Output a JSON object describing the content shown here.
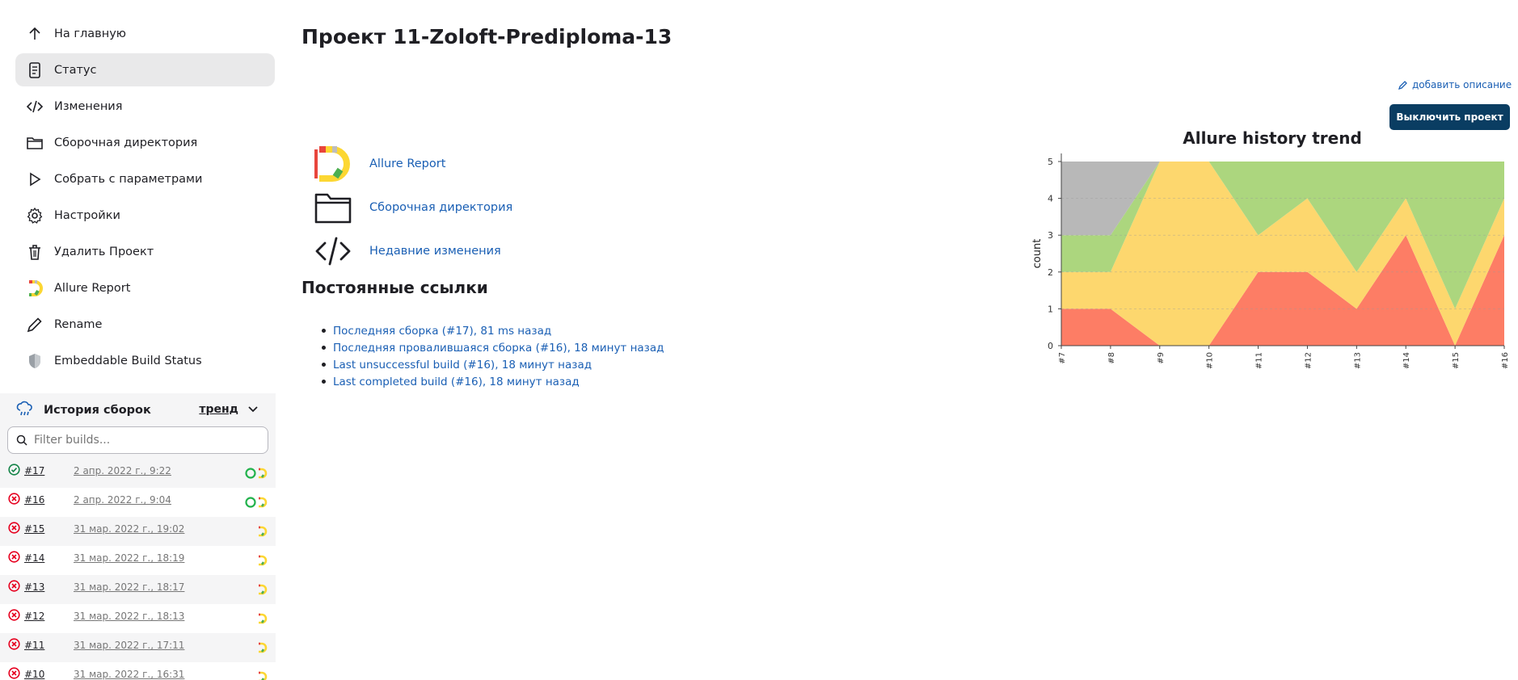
{
  "sidebar": {
    "items": [
      {
        "label": "На главную",
        "icon": "arrow-up-icon"
      },
      {
        "label": "Статус",
        "icon": "document-icon",
        "active": true
      },
      {
        "label": "Изменения",
        "icon": "code-icon"
      },
      {
        "label": "Сборочная директория",
        "icon": "folder-icon"
      },
      {
        "label": "Собрать с параметрами",
        "icon": "play-icon"
      },
      {
        "label": "Настройки",
        "icon": "gear-icon"
      },
      {
        "label": "Удалить Проект",
        "icon": "trash-icon"
      },
      {
        "label": "Allure Report",
        "icon": "allure-logo-icon"
      },
      {
        "label": "Rename",
        "icon": "pencil-icon"
      },
      {
        "label": "Embeddable Build Status",
        "icon": "shield-icon"
      }
    ]
  },
  "history": {
    "title": "История сборок",
    "trend_label": "тренд",
    "filter_placeholder": "Filter builds...",
    "builds": [
      {
        "number": "#17",
        "date": "2 апр. 2022 г., 9:22",
        "status": "success"
      },
      {
        "number": "#16",
        "date": "2 апр. 2022 г., 9:04",
        "status": "failed"
      },
      {
        "number": "#15",
        "date": "31 мар. 2022 г., 19:02",
        "status": "failed"
      },
      {
        "number": "#14",
        "date": "31 мар. 2022 г., 18:19",
        "status": "failed"
      },
      {
        "number": "#13",
        "date": "31 мар. 2022 г., 18:17",
        "status": "failed"
      },
      {
        "number": "#12",
        "date": "31 мар. 2022 г., 18:13",
        "status": "failed"
      },
      {
        "number": "#11",
        "date": "31 мар. 2022 г., 17:11",
        "status": "failed"
      },
      {
        "number": "#10",
        "date": "31 мар. 2022 г., 16:31",
        "status": "failed"
      }
    ]
  },
  "main": {
    "title": "Проект 11-Zoloft-Prediploma-13",
    "add_description": "добавить описание",
    "disable_button": "Выключить проект",
    "links": [
      {
        "label": "Allure Report",
        "icon": "allure-logo-icon"
      },
      {
        "label": "Сборочная директория",
        "icon": "folder-icon"
      },
      {
        "label": "Недавние изменения",
        "icon": "code-icon"
      }
    ],
    "permalinks_title": "Постоянные ссылки",
    "permalinks": [
      "Последняя сборка (#17), 81 ms назад",
      "Последняя провалившаяся сборка (#16), 18 минут назад",
      "Last unsuccessful build (#16), 18 минут назад",
      "Last completed build (#16), 18 минут назад"
    ]
  },
  "colors": {
    "failed": "#fd7d65",
    "broken": "#fdd76e",
    "passed": "#acd67e",
    "skipped": "#b8b8b8",
    "link": "#1a5fb4",
    "button": "#0a3d62"
  },
  "chart_data": {
    "type": "area",
    "title": "Allure history trend",
    "ylabel": "count",
    "xlabel": "",
    "categories": [
      "#7",
      "#8",
      "#9",
      "#10",
      "#11",
      "#12",
      "#13",
      "#14",
      "#15",
      "#16"
    ],
    "ylim": [
      0,
      5
    ],
    "yticks": [
      0,
      1,
      2,
      3,
      4,
      5
    ],
    "stacked": true,
    "grid": true,
    "series": [
      {
        "color": "#fd7d65",
        "values": [
          1,
          1,
          0,
          0,
          2,
          2,
          1,
          3,
          0,
          3
        ]
      },
      {
        "color": "#fdd76e",
        "values": [
          1,
          1,
          5,
          5,
          1,
          2,
          1,
          1,
          1,
          1
        ]
      },
      {
        "color": "#acd67e",
        "values": [
          1,
          1,
          0,
          0,
          2,
          1,
          3,
          1,
          4,
          1
        ]
      },
      {
        "color": "#b8b8b8",
        "values": [
          2,
          2,
          0,
          0,
          0,
          0,
          0,
          0,
          0,
          0
        ]
      }
    ]
  }
}
